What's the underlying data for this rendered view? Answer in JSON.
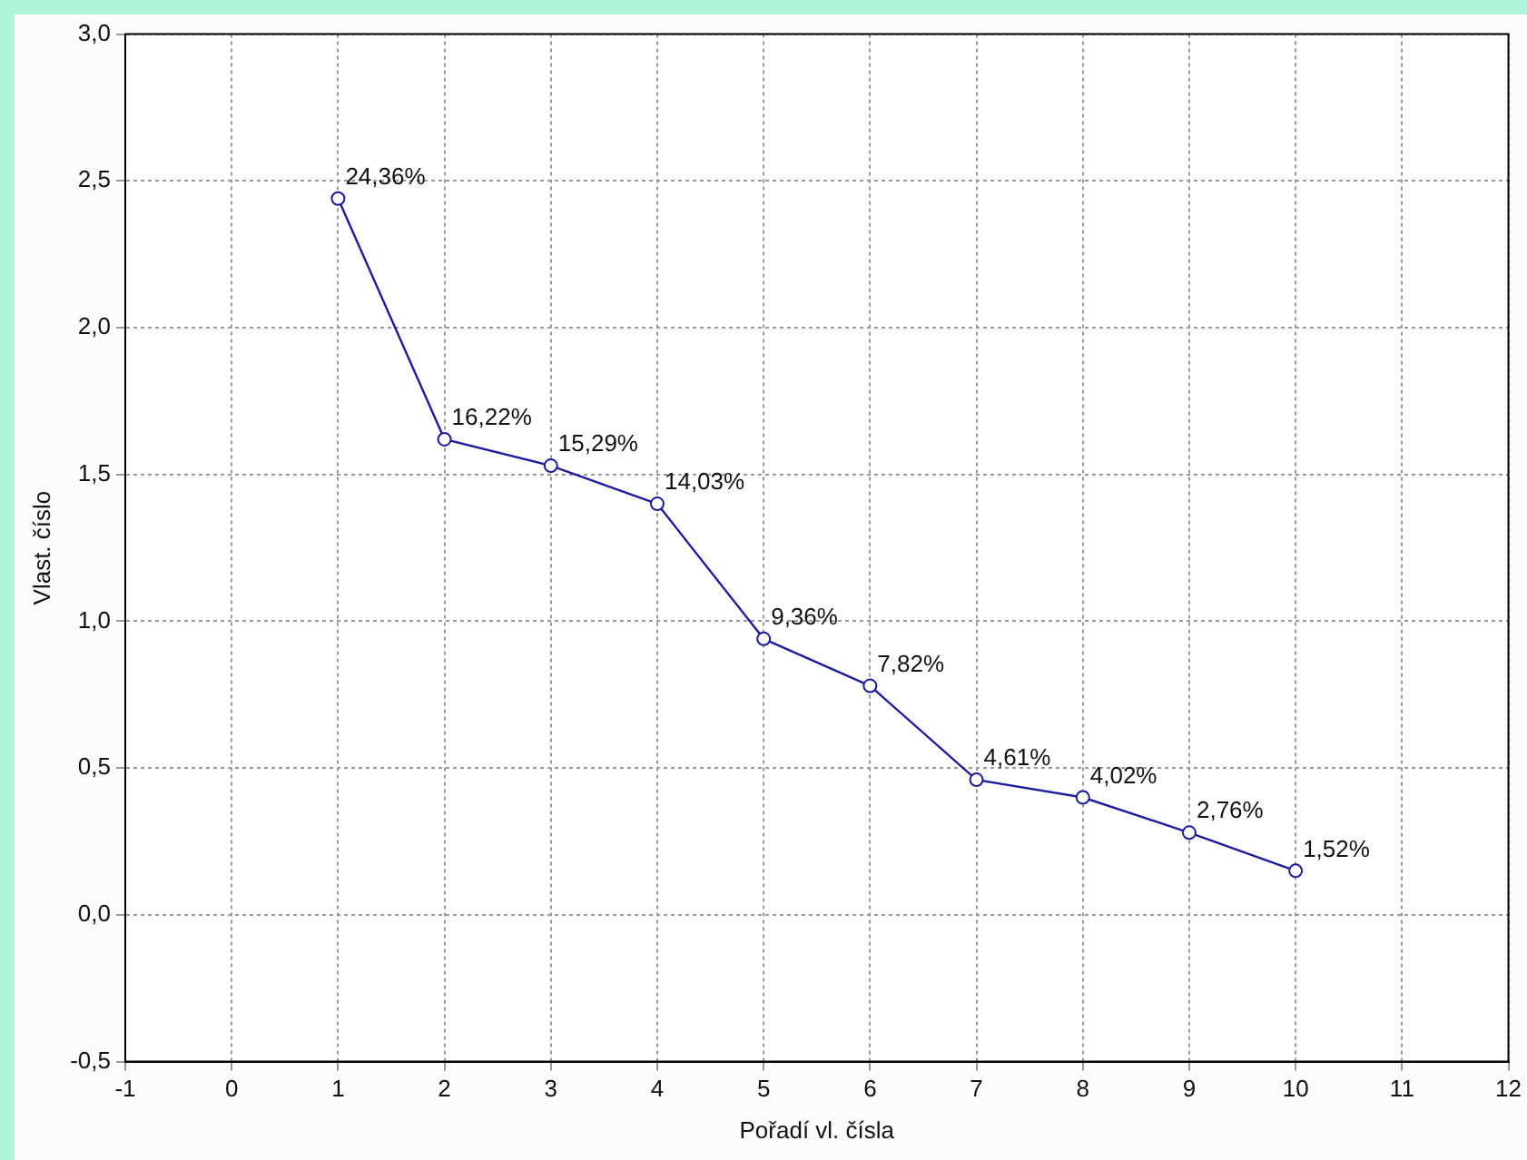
{
  "chart_data": {
    "type": "line",
    "xlabel": "Pořadí vl. čísla",
    "ylabel": "Vlast. číslo",
    "x": [
      1,
      2,
      3,
      4,
      5,
      6,
      7,
      8,
      9,
      10
    ],
    "values": [
      2.44,
      1.62,
      1.53,
      1.4,
      0.94,
      0.78,
      0.46,
      0.4,
      0.28,
      0.15
    ],
    "annotations": [
      {
        "text": "24,36%",
        "x": 1,
        "y": 2.44
      },
      {
        "text": "16,22%",
        "x": 2,
        "y": 1.62
      },
      {
        "text": "15,29%",
        "x": 3,
        "y": 1.53
      },
      {
        "text": "14,03%",
        "x": 4,
        "y": 1.4
      },
      {
        "text": "9,36%",
        "x": 5,
        "y": 0.94
      },
      {
        "text": "7,82%",
        "x": 6,
        "y": 0.78
      },
      {
        "text": "4,61%",
        "x": 7,
        "y": 0.46
      },
      {
        "text": "4,02%",
        "x": 8,
        "y": 0.4
      },
      {
        "text": "2,76%",
        "x": 9,
        "y": 0.28
      },
      {
        "text": "1,52%",
        "x": 10,
        "y": 0.15
      }
    ],
    "color": "#1c1c9c",
    "xlim": [
      -1,
      12
    ],
    "xticks": [
      -1,
      0,
      1,
      2,
      3,
      4,
      5,
      6,
      7,
      8,
      9,
      10,
      11,
      12
    ],
    "ylim": [
      -0.5,
      3.0
    ],
    "yticks": [
      {
        "value": -0.5,
        "label": "-0,5"
      },
      {
        "value": 0,
        "label": "0,0"
      },
      {
        "value": 0.5,
        "label": "0,5"
      },
      {
        "value": 1.0,
        "label": "1,0"
      },
      {
        "value": 1.5,
        "label": "1,5"
      },
      {
        "value": 2.0,
        "label": "2,0"
      },
      {
        "value": 2.5,
        "label": "2,5"
      },
      {
        "value": 3.0,
        "label": "3,0"
      }
    ],
    "grid": true,
    "marker": "circle",
    "line_style": "solid"
  }
}
